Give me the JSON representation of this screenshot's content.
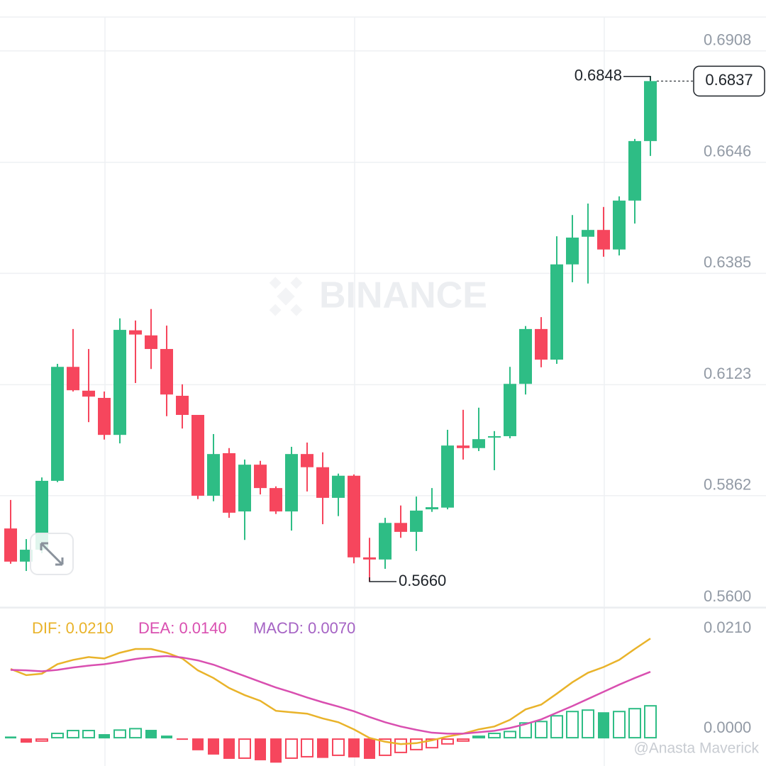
{
  "chart_data": [
    {
      "type": "candlestick",
      "watermark": "BINANCE",
      "up_color": "#2ebd85",
      "down_color": "#f6465d",
      "ylim": [
        0.56,
        0.6986
      ],
      "yticks": [
        0.6908,
        0.6646,
        0.6385,
        0.6123,
        0.5862,
        {
          "value": 0.56,
          "label": "0.5600"
        }
      ],
      "grid": true,
      "high_label": "0.6848",
      "low_label": "0.5660",
      "last_price_label": "0.6837",
      "open": [
        0.5785,
        0.5707,
        0.5735,
        0.5897,
        0.6165,
        0.6109,
        0.6092,
        0.6005,
        0.6251,
        0.6239,
        0.6207,
        0.6097,
        0.6052,
        0.5862,
        0.5962,
        0.5825,
        0.5935,
        0.588,
        0.5825,
        0.596,
        0.5929,
        0.5857,
        0.5909,
        0.5717,
        0.5712,
        0.5798,
        0.5777,
        0.583,
        0.5834,
        0.598,
        0.5974,
        0.5999,
        0.6002,
        0.6125,
        0.6254,
        0.6182,
        0.6406,
        0.6471,
        0.6487,
        0.6441,
        0.6556,
        0.6696
      ],
      "high": [
        0.5852,
        0.576,
        0.5905,
        0.6172,
        0.6254,
        0.6207,
        0.6107,
        0.6279,
        0.6274,
        0.6301,
        0.6262,
        0.6124,
        0.6052,
        0.6007,
        0.5974,
        0.5947,
        0.5944,
        0.5884,
        0.5977,
        0.5987,
        0.5964,
        0.5914,
        0.5912,
        0.5763,
        0.581,
        0.5839,
        0.586,
        0.588,
        0.6017,
        0.6064,
        0.6069,
        0.6014,
        0.6165,
        0.6261,
        0.6282,
        0.6472,
        0.6522,
        0.6549,
        0.6541,
        0.6566,
        0.6701,
        0.6848
      ],
      "low": [
        0.5702,
        0.5685,
        0.5727,
        0.5894,
        0.6107,
        0.6035,
        0.5994,
        0.5985,
        0.6127,
        0.616,
        0.6049,
        0.602,
        0.5854,
        0.5849,
        0.581,
        0.5758,
        0.5865,
        0.5819,
        0.578,
        0.5872,
        0.5795,
        0.5814,
        0.5703,
        0.566,
        0.569,
        0.5763,
        0.5732,
        0.5824,
        0.583,
        0.5947,
        0.5967,
        0.5922,
        0.5997,
        0.61,
        0.6164,
        0.6172,
        0.6364,
        0.6361,
        0.6424,
        0.6427,
        0.6502,
        0.6661
      ],
      "close": [
        0.5707,
        0.5735,
        0.5897,
        0.6165,
        0.611,
        0.6095,
        0.6005,
        0.6252,
        0.6241,
        0.6207,
        0.61,
        0.6052,
        0.5862,
        0.596,
        0.5822,
        0.5935,
        0.588,
        0.5825,
        0.596,
        0.5929,
        0.5857,
        0.5909,
        0.5717,
        0.5712,
        0.5798,
        0.5777,
        0.5827,
        0.5835,
        0.598,
        0.5974,
        0.5995,
        0.6002,
        0.6125,
        0.6254,
        0.6182,
        0.6406,
        0.6469,
        0.6487,
        0.6441,
        0.6556,
        0.6696,
        0.6837
      ]
    },
    {
      "type": "macd",
      "credit": "@Anasta Maverick",
      "ylim": [
        -0.0058,
        0.027
      ],
      "yticks": [
        {
          "value": 0.021,
          "label": "0.0210"
        },
        {
          "value": 0,
          "label": "0.0000"
        }
      ],
      "series": [
        {
          "label": "DIF: 0.0210",
          "color": "#e9b32a",
          "kind": "line",
          "values": [
            0.0146,
            0.0133,
            0.0136,
            0.0156,
            0.0165,
            0.0171,
            0.0168,
            0.018,
            0.0188,
            0.0188,
            0.018,
            0.0168,
            0.0143,
            0.0127,
            0.0106,
            0.0091,
            0.0079,
            0.0058,
            0.0055,
            0.0052,
            0.0042,
            0.0034,
            0.0019,
            0.0001,
            -0.0007,
            -0.0012,
            -0.001,
            -0.0004,
            0.0004,
            0.001,
            0.0019,
            0.0025,
            0.0039,
            0.0061,
            0.0071,
            0.0094,
            0.0118,
            0.0138,
            0.015,
            0.0165,
            0.0188,
            0.021
          ]
        },
        {
          "label": "DEA: 0.0140",
          "color": "#d94fb0",
          "kind": "line",
          "values": [
            0.0144,
            0.0143,
            0.0141,
            0.0144,
            0.0149,
            0.0153,
            0.0156,
            0.0161,
            0.0167,
            0.0171,
            0.0173,
            0.017,
            0.0164,
            0.0155,
            0.0143,
            0.0131,
            0.0119,
            0.0107,
            0.0097,
            0.0086,
            0.0076,
            0.0067,
            0.0057,
            0.0045,
            0.0034,
            0.0025,
            0.0018,
            0.0012,
            0.001,
            0.001,
            0.0013,
            0.0016,
            0.0022,
            0.003,
            0.004,
            0.0054,
            0.0068,
            0.0083,
            0.0098,
            0.0113,
            0.0127,
            0.014
          ]
        },
        {
          "label": "MACD: 0.0070",
          "color": "#a563c4",
          "kind": "histogram",
          "up_color": "#2ebd85",
          "down_color": "#f6465d",
          "values": [
            0.0004,
            -0.0009,
            -0.0007,
            0.0012,
            0.0018,
            0.0018,
            0.0009,
            0.0019,
            0.0022,
            0.0018,
            0.0006,
            -0.0003,
            -0.0025,
            -0.0034,
            -0.0043,
            -0.0043,
            -0.0046,
            -0.0051,
            -0.0043,
            -0.004,
            -0.0041,
            -0.0037,
            -0.004,
            -0.0043,
            -0.0037,
            -0.0031,
            -0.0025,
            -0.0021,
            -0.0013,
            -0.0007,
            0.0006,
            0.0012,
            0.0016,
            0.0034,
            0.0037,
            0.0049,
            0.0058,
            0.0061,
            0.0055,
            0.0058,
            0.0064,
            0.007
          ]
        }
      ]
    }
  ]
}
